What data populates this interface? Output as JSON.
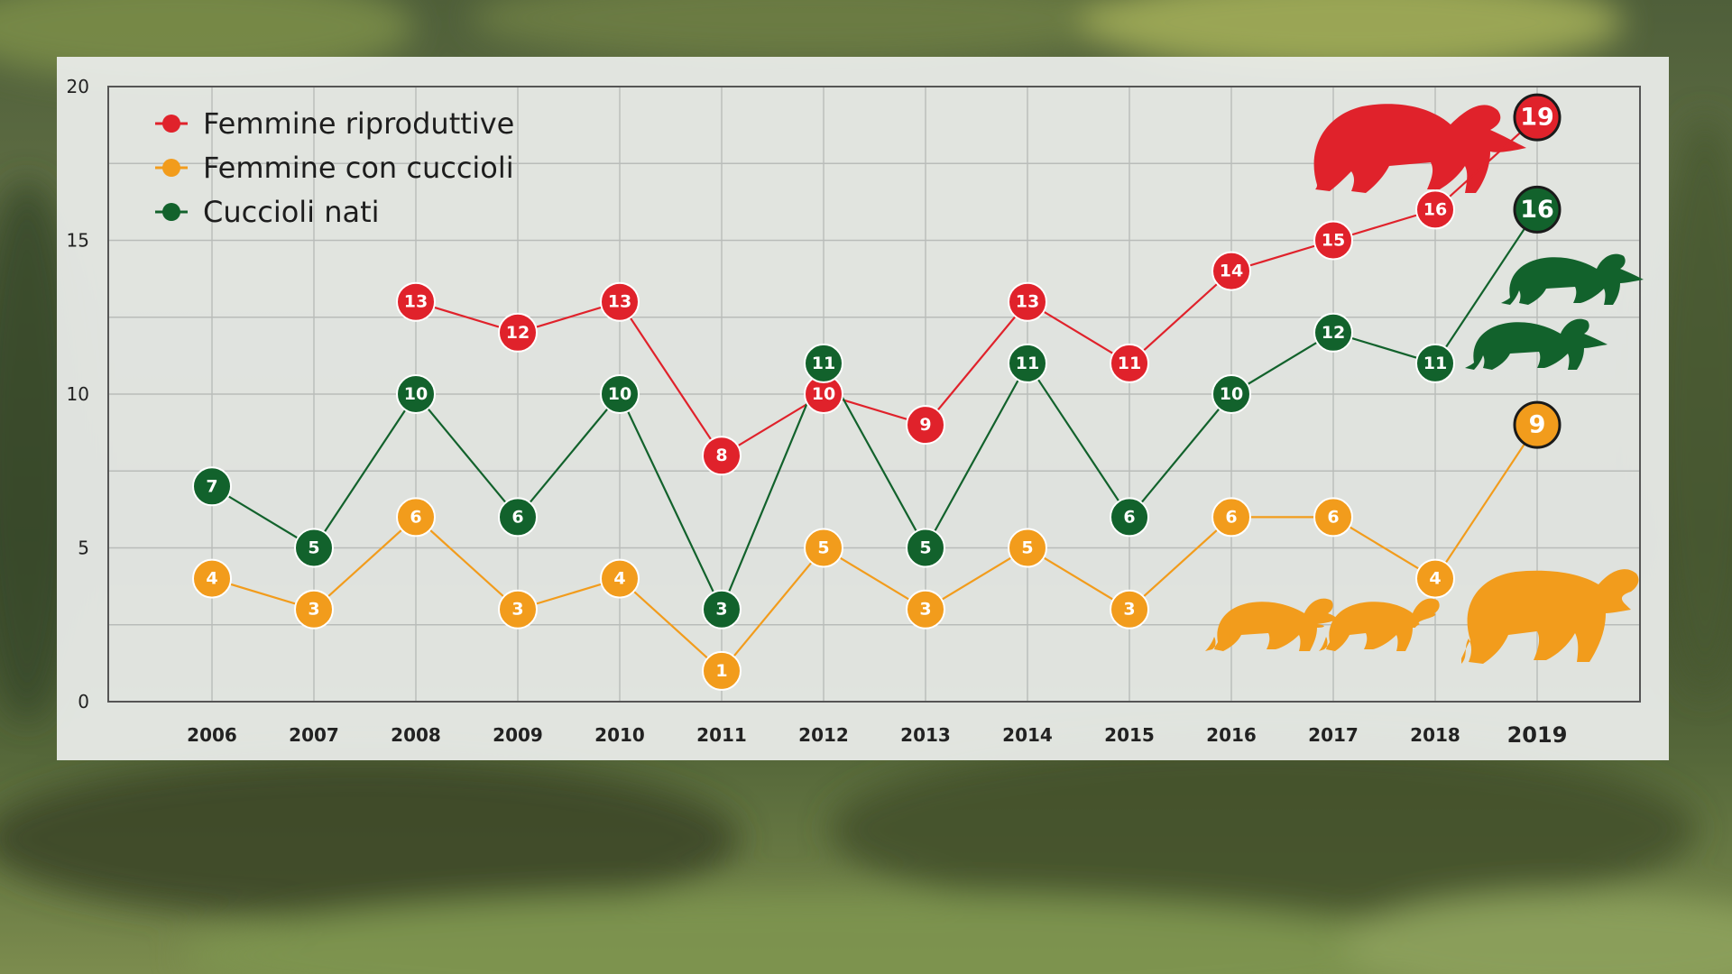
{
  "colors": {
    "red": "#e0222b",
    "orange": "#f29c1c",
    "green": "#12622c",
    "grid": "#b9bcb9",
    "axis": "#555555"
  },
  "icons": {
    "bear_large_red": "bear-silhouette-icon",
    "bear_cubs_green": "bear-cub-silhouette-icon",
    "bear_orange": "bear-silhouette-icon"
  },
  "chart_data": {
    "type": "line",
    "title": "",
    "xlabel": "",
    "ylabel": "",
    "x": [
      "2006",
      "2007",
      "2008",
      "2009",
      "2010",
      "2011",
      "2012",
      "2013",
      "2014",
      "2015",
      "2016",
      "2017",
      "2018",
      "2019"
    ],
    "ylim": [
      0,
      20
    ],
    "yticks": [
      "0",
      "5",
      "10",
      "15",
      "20"
    ],
    "grid": true,
    "legend_position": "top-left",
    "series": [
      {
        "name": "Femmine riproduttive",
        "color": "#e0222b",
        "values": [
          null,
          null,
          13,
          12,
          13,
          8,
          10,
          9,
          13,
          11,
          14,
          15,
          16,
          19
        ],
        "labels": [
          "",
          "",
          "13",
          "12",
          "13",
          "8",
          "10",
          "9",
          "13",
          "11",
          "14",
          "15",
          "16",
          "19"
        ]
      },
      {
        "name": "Femmine con cuccioli",
        "color": "#f29c1c",
        "values": [
          4,
          3,
          6,
          3,
          4,
          1,
          5,
          3,
          5,
          3,
          6,
          6,
          4,
          9
        ],
        "labels": [
          "4",
          "3",
          "6",
          "3",
          "4",
          "1",
          "5",
          "3",
          "5",
          "3",
          "6",
          "6",
          "4",
          "9"
        ]
      },
      {
        "name": "Cuccioli nati",
        "color": "#12622c",
        "values": [
          7,
          5,
          10,
          6,
          10,
          3,
          11,
          5,
          11,
          6,
          10,
          12,
          11,
          16
        ],
        "labels": [
          "7",
          "5",
          "10",
          "6",
          "10",
          "3",
          "11",
          "5",
          "11",
          "6",
          "10",
          "12",
          "11",
          "16"
        ]
      }
    ]
  }
}
